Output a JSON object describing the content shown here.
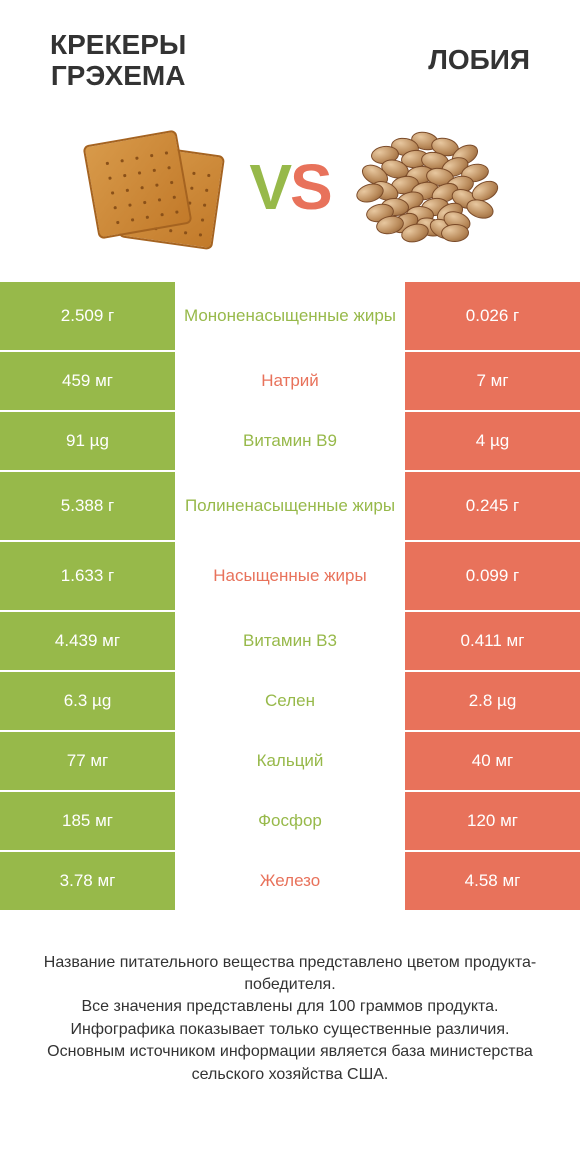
{
  "colors": {
    "green": "#97b94a",
    "orange": "#e8725b",
    "white": "#ffffff",
    "text": "#333333"
  },
  "header": {
    "left_line1": "КРЕКЕРЫ",
    "left_line2": "ГРЭХЕМА",
    "right": "ЛОБИЯ"
  },
  "vs": {
    "v": "V",
    "s": "S"
  },
  "rows": [
    {
      "left": "2.509 г",
      "mid": "Мононенасыщенные жиры",
      "right": "0.026 г",
      "winner": "left",
      "tall": true
    },
    {
      "left": "459 мг",
      "mid": "Натрий",
      "right": "7 мг",
      "winner": "right",
      "tall": false
    },
    {
      "left": "91 µg",
      "mid": "Витамин B9",
      "right": "4 µg",
      "winner": "left",
      "tall": false
    },
    {
      "left": "5.388 г",
      "mid": "Полиненасыщенные жиры",
      "right": "0.245 г",
      "winner": "left",
      "tall": true
    },
    {
      "left": "1.633 г",
      "mid": "Насыщенные жиры",
      "right": "0.099 г",
      "winner": "right",
      "tall": true
    },
    {
      "left": "4.439 мг",
      "mid": "Витамин B3",
      "right": "0.411 мг",
      "winner": "left",
      "tall": false
    },
    {
      "left": "6.3 µg",
      "mid": "Селен",
      "right": "2.8 µg",
      "winner": "left",
      "tall": false
    },
    {
      "left": "77 мг",
      "mid": "Кальций",
      "right": "40 мг",
      "winner": "left",
      "tall": false
    },
    {
      "left": "185 мг",
      "mid": "Фосфор",
      "right": "120 мг",
      "winner": "left",
      "tall": false
    },
    {
      "left": "3.78 мг",
      "mid": "Железо",
      "right": "4.58 мг",
      "winner": "right",
      "tall": false
    }
  ],
  "footer": {
    "l1": "Название питательного вещества представлено цветом продукта-победителя.",
    "l2": "Все значения представлены для 100 граммов продукта.",
    "l3": "Инфографика показывает только существенные различия.",
    "l4": "Основным источником информации является база министерства сельского хозяйства США."
  }
}
